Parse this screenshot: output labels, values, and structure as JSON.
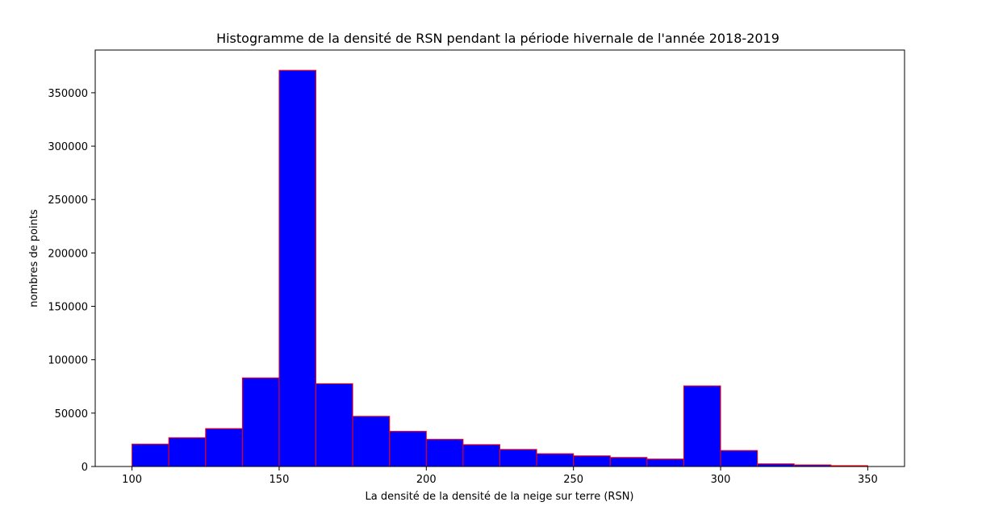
{
  "chart_data": {
    "type": "bar",
    "title": "Histogramme de la densité de RSN pendant la période hivernale de l'année 2018-2019",
    "xlabel": "La densité de la densité de la neige sur terre (RSN)",
    "ylabel": "nombres de points",
    "xlim": [
      87.5,
      362.5
    ],
    "ylim": [
      0,
      390000
    ],
    "xticks": [
      100,
      150,
      200,
      250,
      300,
      350
    ],
    "yticks": [
      0,
      50000,
      100000,
      150000,
      200000,
      250000,
      300000,
      350000
    ],
    "bin_edges": [
      100,
      112.5,
      125,
      137.5,
      150,
      162.5,
      175,
      187.5,
      200,
      212.5,
      225,
      237.5,
      250,
      262.5,
      275,
      287.5,
      300,
      312.5,
      325,
      337.5,
      350
    ],
    "values": [
      21000,
      27000,
      35500,
      83000,
      371000,
      77500,
      47000,
      33000,
      25500,
      20500,
      16000,
      12000,
      10000,
      8500,
      7000,
      75500,
      15000,
      2500,
      1500,
      800
    ],
    "bar_color": "#0000ff",
    "edge_color": "#ff0000",
    "grid": false,
    "legend": false
  }
}
